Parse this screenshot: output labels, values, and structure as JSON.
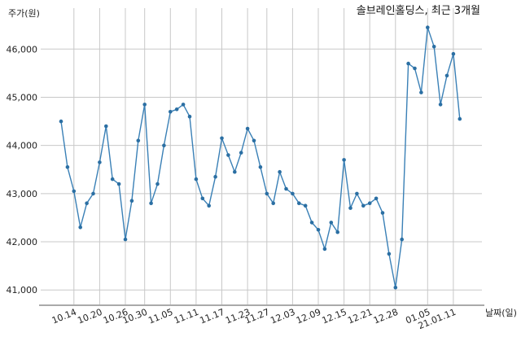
{
  "chart_data": {
    "type": "line",
    "title": "솔브레인홀딩스, 최근 3개월",
    "ylabel": "주가(원)",
    "xlabel": "날짜(일)",
    "ylim": [
      40700,
      46850
    ],
    "yticks": [
      41000,
      42000,
      43000,
      44000,
      45000,
      46000
    ],
    "ytick_labels": [
      "41,000",
      "42,000",
      "43,000",
      "44,000",
      "45,000",
      "46,000"
    ],
    "xtick_labels": [
      "10.14",
      "10.20",
      "10.26",
      "10.30",
      "11.05",
      "11.11",
      "11.17",
      "11.23",
      "11.27",
      "12.03",
      "12.09",
      "12.15",
      "12.21",
      "12.28",
      "01.05",
      "21.01.11"
    ],
    "xtick_index": [
      2,
      6,
      10,
      13,
      17,
      21,
      25,
      29,
      32,
      36,
      40,
      44,
      48,
      52,
      57,
      61
    ],
    "grid": true,
    "colors": {
      "line": "#3a80b6",
      "marker": "#2b6fa3"
    },
    "series": [
      {
        "values": [
          44500,
          43550,
          43050,
          42300,
          42800,
          43000,
          43650,
          44400,
          43300,
          43200,
          42050,
          42850,
          44100,
          44850,
          42800,
          43200,
          44000,
          44700,
          44750,
          44850,
          44600,
          43300,
          42900,
          42750,
          43350,
          44150,
          43800,
          43450,
          43850,
          44350,
          44100,
          43550,
          43000,
          42800,
          43450,
          43100,
          43000,
          42800,
          42750,
          42400,
          42250,
          41850,
          42400,
          42200,
          43700,
          42700,
          43000,
          42750,
          42800,
          42900,
          42600,
          41750,
          41050,
          42050,
          45700,
          45600,
          45100,
          46450,
          46050,
          44850,
          45450,
          45900,
          44550
        ]
      }
    ]
  }
}
